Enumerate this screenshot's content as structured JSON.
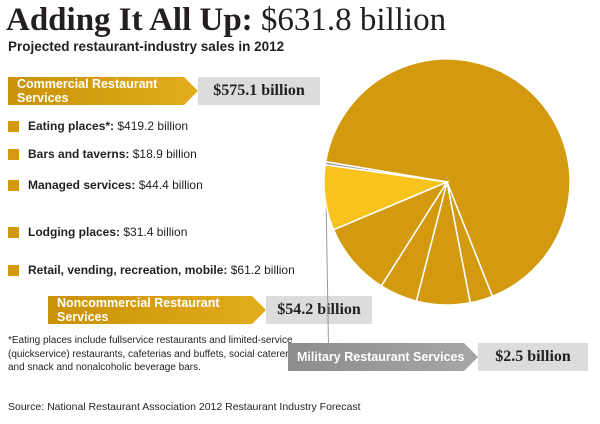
{
  "title": {
    "bold": "Adding It All Up:",
    "value": "$631.8 billion"
  },
  "subtitle": "Projected restaurant-industry sales in 2012",
  "commercial": {
    "label": "Commercial Restaurant Services",
    "amount": "$575.1 billion"
  },
  "items": [
    {
      "label": "Eating places*:",
      "value": "$419.2 billion"
    },
    {
      "label": "Bars and taverns:",
      "value": "$18.9 billion"
    },
    {
      "label": "Managed services:",
      "value": "$44.4 billion"
    },
    {
      "label": "Lodging places:",
      "value": "$31.4 billion"
    },
    {
      "label": "Retail, vending, recreation, mobile:",
      "value": "$61.2 billion"
    }
  ],
  "noncommercial": {
    "label": "Noncommercial Restaurant Services",
    "amount": "$54.2 billion"
  },
  "military": {
    "label": "Military Restaurant Services",
    "amount": "$2.5 billion"
  },
  "footnote": "*Eating places include fullservice restaurants and limited-service (quickservice) restaurants, cafeterias and buffets, social caterers, and snack and nonalcoholic beverage bars.",
  "source": "Source: National Restaurant Association 2012 Restaurant Industry Forecast",
  "colors": {
    "commercial": "#d49a0f",
    "noncommercial": "#f8c31c",
    "military": "#9a9a9a",
    "slice_edge": "#ffffff"
  },
  "chart_data": {
    "type": "pie",
    "title": "Adding It All Up: $631.8 billion",
    "subtitle": "Projected restaurant-industry sales in 2012",
    "total": 631.8,
    "unit": "billion USD",
    "slices": [
      {
        "name": "Eating places",
        "value": 419.2,
        "group": "commercial"
      },
      {
        "name": "Bars and taverns",
        "value": 18.9,
        "group": "commercial"
      },
      {
        "name": "Managed services",
        "value": 44.4,
        "group": "commercial"
      },
      {
        "name": "Lodging places",
        "value": 31.4,
        "group": "commercial"
      },
      {
        "name": "Retail, vending, recreation, mobile",
        "value": 61.2,
        "group": "commercial"
      },
      {
        "name": "Noncommercial Restaurant Services",
        "value": 54.2,
        "group": "noncommercial"
      },
      {
        "name": "Military Restaurant Services",
        "value": 2.5,
        "group": "military"
      }
    ]
  }
}
